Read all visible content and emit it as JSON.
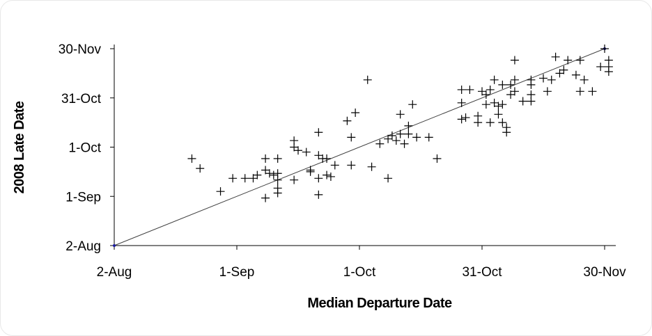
{
  "chart_data": {
    "type": "scatter",
    "xlabel": "Median Departure Date",
    "ylabel": "2008 Late Date",
    "x_axis": {
      "ticks": [
        "2-Aug",
        "1-Sep",
        "1-Oct",
        "31-Oct",
        "30-Nov"
      ],
      "range": [
        "2-Aug",
        "30-Nov"
      ],
      "tick_step_days": 30
    },
    "y_axis": {
      "ticks": [
        "2-Aug",
        "1-Sep",
        "1-Oct",
        "31-Oct",
        "30-Nov"
      ],
      "range": [
        "2-Aug",
        "30-Nov"
      ],
      "tick_step_days": 30
    },
    "marker": "plus",
    "grid": false,
    "reference_line": {
      "from": [
        "2-Aug",
        "2-Aug"
      ],
      "to": [
        "30-Nov",
        "30-Nov"
      ],
      "color": "#404040"
    },
    "points": [
      [
        "21-Aug",
        "24-Sep"
      ],
      [
        "23-Aug",
        "18-Sep"
      ],
      [
        "28-Aug",
        "4-Sep"
      ],
      [
        "31-Aug",
        "12-Sep"
      ],
      [
        "3-Sep",
        "12-Sep"
      ],
      [
        "5-Sep",
        "12-Sep"
      ],
      [
        "6-Sep",
        "14-Sep"
      ],
      [
        "8-Sep",
        "31-Aug"
      ],
      [
        "8-Sep",
        "17-Sep"
      ],
      [
        "8-Sep",
        "24-Sep"
      ],
      [
        "9-Sep",
        "15-Sep"
      ],
      [
        "10-Sep",
        "14-Sep"
      ],
      [
        "11-Sep",
        "11-Sep"
      ],
      [
        "11-Sep",
        "3-Sep"
      ],
      [
        "11-Sep",
        "6-Sep"
      ],
      [
        "11-Sep",
        "24-Sep"
      ],
      [
        "11-Sep",
        "15-Sep"
      ],
      [
        "15-Sep",
        "11-Sep"
      ],
      [
        "15-Sep",
        "1-Oct"
      ],
      [
        "15-Sep",
        "5-Oct"
      ],
      [
        "16-Sep",
        "29-Sep"
      ],
      [
        "18-Sep",
        "28-Sep"
      ],
      [
        "19-Sep",
        "17-Sep"
      ],
      [
        "19-Sep",
        "16-Sep"
      ],
      [
        "21-Sep",
        "12-Sep"
      ],
      [
        "21-Sep",
        "2-Sep"
      ],
      [
        "21-Sep",
        "10-Oct"
      ],
      [
        "21-Sep",
        "26-Sep"
      ],
      [
        "22-Sep",
        "24-Sep"
      ],
      [
        "23-Sep",
        "14-Sep"
      ],
      [
        "23-Sep",
        "24-Sep"
      ],
      [
        "24-Sep",
        "13-Sep"
      ],
      [
        "25-Sep",
        "20-Sep"
      ],
      [
        "28-Sep",
        "17-Oct"
      ],
      [
        "29-Sep",
        "7-Oct"
      ],
      [
        "29-Sep",
        "20-Sep"
      ],
      [
        "30-Sep",
        "22-Oct"
      ],
      [
        "3-Oct",
        "11-Nov"
      ],
      [
        "4-Oct",
        "19-Sep"
      ],
      [
        "6-Oct",
        "3-Oct"
      ],
      [
        "8-Oct",
        "6-Oct"
      ],
      [
        "8-Oct",
        "12-Sep"
      ],
      [
        "9-Oct",
        "8-Oct"
      ],
      [
        "10-Oct",
        "5-Oct"
      ],
      [
        "11-Oct",
        "21-Oct"
      ],
      [
        "11-Oct",
        "9-Oct"
      ],
      [
        "12-Oct",
        "3-Oct"
      ],
      [
        "13-Oct",
        "9-Oct"
      ],
      [
        "13-Oct",
        "14-Oct"
      ],
      [
        "14-Oct",
        "27-Oct"
      ],
      [
        "15-Oct",
        "7-Oct"
      ],
      [
        "18-Oct",
        "7-Oct"
      ],
      [
        "20-Oct",
        "24-Sep"
      ],
      [
        "26-Oct",
        "18-Oct"
      ],
      [
        "26-Oct",
        "28-Oct"
      ],
      [
        "26-Oct",
        "5-Nov"
      ],
      [
        "27-Oct",
        "19-Oct"
      ],
      [
        "28-Oct",
        "5-Nov"
      ],
      [
        "30-Oct",
        "16-Oct"
      ],
      [
        "30-Oct",
        "20-Oct"
      ],
      [
        "31-Oct",
        "4-Nov"
      ],
      [
        "1-Nov",
        "2-Nov"
      ],
      [
        "1-Nov",
        "27-Oct"
      ],
      [
        "2-Nov",
        "16-Oct"
      ],
      [
        "2-Nov",
        "5-Nov"
      ],
      [
        "3-Nov",
        "28-Oct"
      ],
      [
        "3-Nov",
        "11-Nov"
      ],
      [
        "4-Nov",
        "26-Oct"
      ],
      [
        "4-Nov",
        "21-Oct"
      ],
      [
        "5-Nov",
        "16-Oct"
      ],
      [
        "5-Nov",
        "27-Oct"
      ],
      [
        "5-Nov",
        "8-Nov"
      ],
      [
        "6-Nov",
        "10-Oct"
      ],
      [
        "6-Nov",
        "13-Oct"
      ],
      [
        "7-Nov",
        "2-Nov"
      ],
      [
        "7-Nov",
        "8-Nov"
      ],
      [
        "8-Nov",
        "11-Nov"
      ],
      [
        "8-Nov",
        "23-Nov"
      ],
      [
        "8-Nov",
        "4-Nov"
      ],
      [
        "10-Nov",
        "29-Oct"
      ],
      [
        "12-Nov",
        "29-Oct"
      ],
      [
        "12-Nov",
        "2-Nov"
      ],
      [
        "12-Nov",
        "11-Nov"
      ],
      [
        "12-Nov",
        "8-Nov"
      ],
      [
        "15-Nov",
        "12-Nov"
      ],
      [
        "16-Nov",
        "4-Nov"
      ],
      [
        "17-Nov",
        "11-Nov"
      ],
      [
        "18-Nov",
        "25-Nov"
      ],
      [
        "19-Nov",
        "15-Nov"
      ],
      [
        "20-Nov",
        "17-Nov"
      ],
      [
        "21-Nov",
        "23-Nov"
      ],
      [
        "23-Nov",
        "14-Nov"
      ],
      [
        "24-Nov",
        "4-Nov"
      ],
      [
        "24-Nov",
        "23-Nov"
      ],
      [
        "25-Nov",
        "11-Nov"
      ],
      [
        "27-Nov",
        "4-Nov"
      ],
      [
        "29-Nov",
        "19-Nov"
      ],
      [
        "31-Nov",
        "19-Nov"
      ],
      [
        "1-Dec",
        "23-Nov"
      ],
      [
        "3-Dec",
        "16-Nov"
      ],
      [
        "1-Dec",
        "16-Nov"
      ],
      [
        "30-Nov",
        "30-Nov"
      ]
    ]
  }
}
